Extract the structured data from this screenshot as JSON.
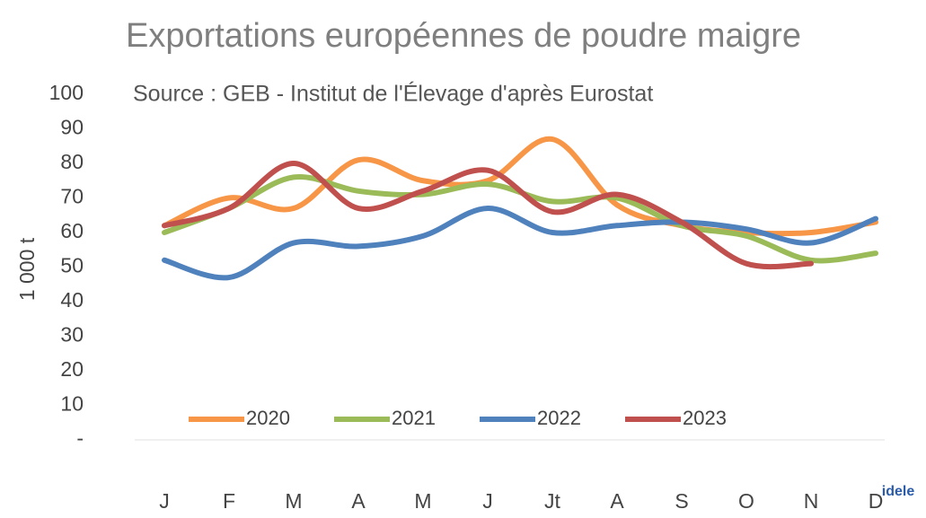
{
  "chart_data": {
    "type": "line",
    "title": "Exportations européennes de poudre maigre",
    "subtitle": "Source : GEB - Institut de l'Élevage d'après Eurostat",
    "y_label": "1 000 t",
    "categories": [
      "J",
      "F",
      "M",
      "A",
      "M",
      "J",
      "Jt",
      "A",
      "S",
      "O",
      "N",
      "D"
    ],
    "series": [
      {
        "name": "2020",
        "color": "#f79646",
        "values": [
          62,
          70,
          67,
          81,
          75,
          75,
          87,
          68,
          62,
          60,
          60,
          63
        ]
      },
      {
        "name": "2021",
        "color": "#9bbb59",
        "values": [
          60,
          67,
          76,
          72,
          71,
          74,
          69,
          70,
          62,
          59,
          52,
          54
        ]
      },
      {
        "name": "2022",
        "color": "#4f81bd",
        "values": [
          52,
          47,
          57,
          56,
          59,
          67,
          60,
          62,
          63,
          61,
          57,
          64
        ]
      },
      {
        "name": "2023",
        "color": "#c0504d",
        "values": [
          62,
          67,
          80,
          67,
          72,
          78,
          66,
          71,
          63,
          51,
          51,
          null
        ]
      }
    ],
    "ylim": [
      0,
      100
    ],
    "yticks": [
      {
        "value": 0,
        "label": "-"
      },
      10,
      20,
      30,
      40,
      50,
      60,
      70,
      80,
      90,
      100
    ],
    "smooth": true,
    "legend": "bottom",
    "logo": "idele"
  }
}
